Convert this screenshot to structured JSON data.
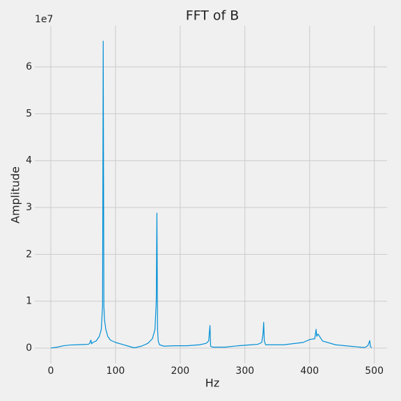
{
  "chart_data": {
    "type": "line",
    "title": "FFT of B",
    "x_label": "Hz",
    "y_label": "Amplitude",
    "y_offset_label": "1e7",
    "grid": true,
    "xlim": [
      -24.75,
      519.75
    ],
    "ylim": [
      -3275000,
      68775000
    ],
    "xticks": [
      0,
      100,
      200,
      300,
      400,
      500
    ],
    "yticks": [
      0,
      {
        "value": 10000000,
        "label": "1"
      },
      {
        "value": 20000000,
        "label": "2"
      },
      {
        "value": 30000000,
        "label": "3"
      },
      {
        "value": 40000000,
        "label": "4"
      },
      {
        "value": 50000000,
        "label": "5"
      },
      {
        "value": 60000000,
        "label": "6"
      }
    ],
    "x": [
      0,
      10,
      20,
      30,
      40,
      50,
      58,
      60,
      62,
      63,
      65,
      70,
      75,
      78,
      80,
      81,
      82,
      83,
      85,
      88,
      92,
      100,
      110,
      120,
      129,
      140,
      150,
      157,
      161,
      163,
      164,
      165,
      166,
      168,
      175,
      190,
      210,
      230,
      240,
      244,
      246,
      247,
      250,
      270,
      290,
      310,
      320,
      326,
      328,
      329,
      330,
      332,
      360,
      390,
      400,
      408,
      410,
      411,
      413,
      420,
      440,
      470,
      485,
      490,
      492,
      493,
      494,
      496
    ],
    "series": [
      {
        "color": "#008fd5",
        "values": [
          0,
          200000,
          500000,
          650000,
          700000,
          750000,
          800000,
          1000000,
          1700000,
          900000,
          1200000,
          1500000,
          2500000,
          4000000,
          9000000,
          65500000,
          9000000,
          6000000,
          4000000,
          2500000,
          1700000,
          1200000,
          800000,
          400000,
          50000,
          400000,
          1000000,
          2000000,
          4000000,
          10000000,
          28800000,
          4000000,
          1500000,
          700000,
          400000,
          500000,
          500000,
          700000,
          1000000,
          1500000,
          4800000,
          400000,
          200000,
          200000,
          500000,
          700000,
          800000,
          1200000,
          3000000,
          5500000,
          1500000,
          700000,
          700000,
          1200000,
          1800000,
          2000000,
          4000000,
          2500000,
          3000000,
          1500000,
          700000,
          300000,
          100000,
          500000,
          1200000,
          1600000,
          300000,
          100000
        ]
      }
    ]
  }
}
